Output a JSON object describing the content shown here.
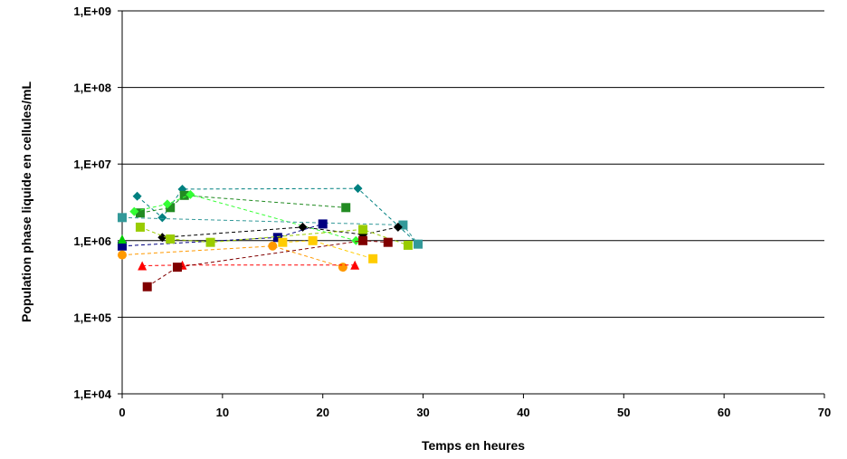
{
  "chart_data": {
    "type": "scatter",
    "title": "",
    "xlabel": "Temps en heures",
    "ylabel": "Population phase liquide en cellules/mL",
    "xlim": [
      0,
      70
    ],
    "ylim": [
      10000,
      1000000000
    ],
    "yscale": "log",
    "grid": "horizontal",
    "legend": "none",
    "x_ticks": [
      "0",
      "10",
      "20",
      "30",
      "40",
      "50",
      "60",
      "70"
    ],
    "y_ticks": [
      "1,E+04",
      "1,E+05",
      "1,E+06",
      "1,E+07",
      "1,E+08",
      "1,E+09"
    ],
    "series": [
      {
        "color": "#008080",
        "marker": "diamond",
        "points": [
          [
            1.5,
            3800000
          ],
          [
            4,
            2000000
          ],
          [
            6,
            4700000
          ],
          [
            23.5,
            4800000
          ],
          [
            29.5,
            900000
          ]
        ]
      },
      {
        "color": "#228B22",
        "marker": "square",
        "points": [
          [
            1.8,
            2300000
          ],
          [
            4.8,
            2700000
          ],
          [
            6.2,
            3900000
          ],
          [
            22.3,
            2700000
          ]
        ]
      },
      {
        "color": "#33FF33",
        "marker": "diamond",
        "points": [
          [
            1.2,
            2400000
          ],
          [
            4.5,
            3000000
          ],
          [
            6.8,
            4000000
          ],
          [
            23.3,
            1000000
          ]
        ]
      },
      {
        "color": "#339999",
        "marker": "square",
        "points": [
          [
            0,
            2000000
          ],
          [
            28,
            1600000
          ],
          [
            29.5,
            900000
          ]
        ]
      },
      {
        "color": "#000000",
        "marker": "diamond",
        "points": [
          [
            4,
            1100000
          ],
          [
            18,
            1500000
          ],
          [
            24,
            1200000
          ],
          [
            27.5,
            1500000
          ]
        ]
      },
      {
        "color": "#000080",
        "marker": "square",
        "points": [
          [
            0,
            850000
          ],
          [
            15.5,
            1100000
          ],
          [
            20,
            1650000
          ]
        ]
      },
      {
        "color": "#99CC00",
        "marker": "square",
        "points": [
          [
            1.8,
            1500000
          ],
          [
            4.8,
            1050000
          ],
          [
            8.8,
            950000
          ],
          [
            24,
            1400000
          ],
          [
            28.5,
            870000
          ]
        ]
      },
      {
        "color": "#00CC00",
        "marker": "triangle",
        "points": [
          [
            0,
            1050000
          ]
        ]
      },
      {
        "color": "#FF9900",
        "marker": "circle",
        "points": [
          [
            0,
            650000
          ],
          [
            15,
            850000
          ],
          [
            22,
            450000
          ]
        ]
      },
      {
        "color": "#FFCC00",
        "marker": "square",
        "points": [
          [
            16,
            950000
          ],
          [
            19,
            1000000
          ],
          [
            25,
            580000
          ]
        ]
      },
      {
        "color": "#FF0000",
        "marker": "triangle",
        "points": [
          [
            2,
            470000
          ],
          [
            6,
            480000
          ],
          [
            23.2,
            480000
          ]
        ]
      },
      {
        "color": "#800000",
        "marker": "square",
        "points": [
          [
            2.5,
            250000
          ],
          [
            5.5,
            450000
          ],
          [
            24,
            1000000
          ],
          [
            26.5,
            950000
          ]
        ]
      }
    ]
  }
}
